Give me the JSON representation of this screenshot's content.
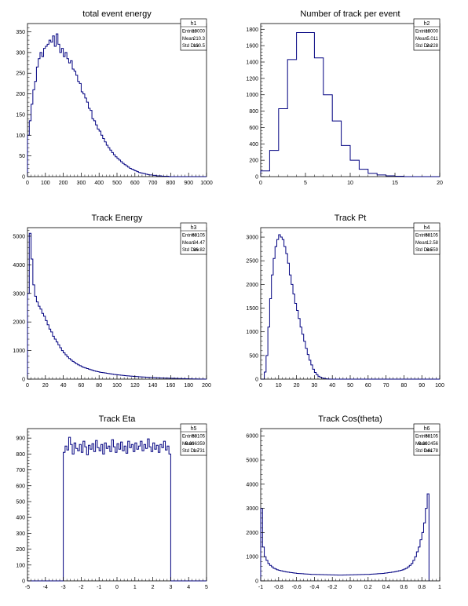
{
  "chart_data": [
    {
      "type": "bar",
      "name": "h1",
      "title": "total event  energy",
      "stats": {
        "entries": "10000",
        "mean": "210.3",
        "std_dev": "130.5"
      },
      "xlim": [
        0,
        1000
      ],
      "ylim": [
        0,
        370
      ],
      "xticks": [
        0,
        100,
        200,
        300,
        400,
        500,
        600,
        700,
        800,
        900,
        1000
      ],
      "yticks": [
        0,
        50,
        100,
        150,
        200,
        250,
        300,
        350
      ],
      "bin_width": 10,
      "bin_start": 0,
      "values": [
        100,
        135,
        175,
        210,
        230,
        265,
        285,
        300,
        290,
        310,
        315,
        320,
        330,
        325,
        340,
        315,
        345,
        320,
        300,
        310,
        290,
        300,
        285,
        275,
        280,
        260,
        255,
        245,
        230,
        225,
        205,
        200,
        190,
        180,
        165,
        160,
        140,
        135,
        125,
        115,
        110,
        100,
        92,
        84,
        76,
        70,
        64,
        58,
        53,
        48,
        44,
        40,
        36,
        32,
        29,
        26,
        23,
        20,
        18,
        16,
        14,
        12,
        10,
        9,
        8,
        7,
        6,
        5,
        4,
        4,
        3,
        3,
        2,
        2,
        2,
        1,
        1,
        1,
        1,
        0,
        0,
        0,
        0,
        0,
        0,
        0,
        0,
        0,
        0,
        0,
        0,
        0,
        0,
        0,
        0,
        0,
        0,
        0,
        0,
        0
      ]
    },
    {
      "type": "bar",
      "name": "h2",
      "title": "Number of track per event",
      "stats": {
        "entries": "10000",
        "mean": "5.011",
        "std_dev": "2.228"
      },
      "xlim": [
        0,
        20
      ],
      "ylim": [
        0,
        1870
      ],
      "xticks": [
        0,
        5,
        10,
        15,
        20
      ],
      "yticks": [
        0,
        200,
        400,
        600,
        800,
        1000,
        1200,
        1400,
        1600,
        1800
      ],
      "bin_width": 1,
      "bin_start": 0,
      "values": [
        70,
        320,
        830,
        1430,
        1760,
        1760,
        1450,
        1000,
        680,
        380,
        200,
        90,
        40,
        20,
        10,
        5,
        0,
        0,
        0,
        0
      ]
    },
    {
      "type": "bar",
      "name": "h3",
      "title": "Track Energy",
      "stats": {
        "entries": "60105",
        "mean": "34.47",
        "std_dev": "36.82"
      },
      "xlim": [
        0,
        200
      ],
      "ylim": [
        0,
        5300
      ],
      "xticks": [
        0,
        20,
        40,
        60,
        80,
        100,
        120,
        140,
        160,
        180,
        200
      ],
      "yticks": [
        0,
        1000,
        2000,
        3000,
        4000,
        5000
      ],
      "bin_width": 2,
      "bin_start": 0,
      "values": [
        3000,
        5100,
        4200,
        3300,
        2900,
        2700,
        2550,
        2450,
        2300,
        2200,
        2050,
        1900,
        1750,
        1650,
        1500,
        1400,
        1300,
        1200,
        1100,
        1000,
        920,
        850,
        780,
        720,
        670,
        620,
        580,
        540,
        500,
        470,
        440,
        410,
        390,
        370,
        350,
        330,
        310,
        290,
        275,
        260,
        245,
        235,
        225,
        215,
        205,
        195,
        185,
        175,
        165,
        158,
        150,
        143,
        136,
        130,
        124,
        118,
        112,
        107,
        102,
        97,
        92,
        88,
        84,
        80,
        76,
        72,
        68,
        64,
        60,
        57,
        54,
        51,
        48,
        45,
        42,
        40,
        38,
        36,
        34,
        32,
        30,
        28,
        26,
        24,
        22,
        20,
        18,
        16,
        14,
        12,
        10,
        9,
        8,
        7,
        6,
        5,
        4,
        3,
        2,
        1
      ]
    },
    {
      "type": "bar",
      "name": "h4",
      "title": "Track Pt",
      "stats": {
        "entries": "50105",
        "mean": "12.58",
        "std_dev": "6.559"
      },
      "xlim": [
        0,
        100
      ],
      "ylim": [
        0,
        3200
      ],
      "xticks": [
        0,
        10,
        20,
        30,
        40,
        50,
        60,
        70,
        80,
        90,
        100
      ],
      "yticks": [
        0,
        500,
        1000,
        1500,
        2000,
        2500,
        3000
      ],
      "bin_width": 1,
      "bin_start": 0,
      "values": [
        0,
        0,
        150,
        500,
        1100,
        1700,
        2200,
        2550,
        2800,
        2950,
        3050,
        3000,
        2950,
        2800,
        2650,
        2450,
        2200,
        2000,
        1800,
        1600,
        1450,
        1280,
        1100,
        950,
        800,
        650,
        520,
        400,
        300,
        210,
        140,
        95,
        60,
        40,
        25,
        15,
        8,
        4,
        2,
        1,
        0,
        0,
        0,
        0,
        0,
        0,
        0,
        0,
        0,
        0,
        0,
        0,
        0,
        0,
        0,
        0,
        0,
        0,
        0,
        0,
        0,
        0,
        0,
        0,
        0,
        0,
        0,
        0,
        0,
        0,
        0,
        0,
        0,
        0,
        0,
        0,
        0,
        0,
        0,
        0,
        0,
        0,
        0,
        0,
        0,
        0,
        0,
        0,
        0,
        0,
        0,
        0,
        0,
        0,
        0,
        0,
        0,
        0,
        0,
        0
      ]
    },
    {
      "type": "bar",
      "name": "h5",
      "title": "Track Eta",
      "stats": {
        "entries": "50105",
        "mean": "-0.006359",
        "std_dev": "1.731"
      },
      "xlim": [
        -5,
        5
      ],
      "ylim": [
        0,
        960
      ],
      "xticks": [
        -5,
        -4,
        -3,
        -2,
        -1,
        0,
        1,
        2,
        3,
        4,
        5
      ],
      "yticks": [
        0,
        100,
        200,
        300,
        400,
        500,
        600,
        700,
        800,
        900
      ],
      "bin_width": 0.1,
      "bin_start": -5,
      "values": [
        0,
        0,
        0,
        0,
        0,
        0,
        0,
        0,
        0,
        0,
        0,
        0,
        0,
        0,
        0,
        0,
        0,
        0,
        0,
        0,
        810,
        850,
        825,
        905,
        860,
        800,
        870,
        835,
        820,
        860,
        810,
        880,
        845,
        795,
        855,
        830,
        865,
        815,
        885,
        840,
        820,
        860,
        800,
        870,
        835,
        850,
        815,
        890,
        845,
        810,
        865,
        830,
        875,
        820,
        850,
        805,
        880,
        840,
        860,
        815,
        870,
        830,
        850,
        880,
        820,
        860,
        835,
        895,
        845,
        815,
        870,
        830,
        855,
        810,
        860,
        840,
        880,
        825,
        850,
        800,
        0,
        0,
        0,
        0,
        0,
        0,
        0,
        0,
        0,
        0,
        0,
        0,
        0,
        0,
        0,
        0,
        0,
        0,
        0,
        0
      ]
    },
    {
      "type": "bar",
      "name": "h6",
      "title": "Track Cos(theta)",
      "stats": {
        "entries": "50105",
        "mean": "-0.002456",
        "std_dev": "0.6178"
      },
      "xlim": [
        -1,
        1
      ],
      "ylim": [
        0,
        6300
      ],
      "xticks": [
        -1,
        -0.8,
        -0.6,
        -0.4,
        -0.2,
        0,
        0.2,
        0.4,
        0.6,
        0.8,
        1
      ],
      "xticklabels": [
        "-1",
        "-0.8",
        "-0.6",
        "-0.4",
        "-0.2",
        "0",
        "0.2",
        "0.4",
        "0.6",
        "0.8",
        "1"
      ],
      "yticks": [
        0,
        1000,
        2000,
        3000,
        4000,
        5000,
        6000
      ],
      "bin_width": 0.02,
      "bin_start": -1,
      "values": [
        3000,
        1400,
        1000,
        850,
        720,
        640,
        580,
        520,
        490,
        460,
        440,
        420,
        400,
        385,
        370,
        360,
        350,
        340,
        330,
        320,
        310,
        305,
        300,
        295,
        290,
        285,
        280,
        275,
        270,
        268,
        266,
        264,
        262,
        260,
        258,
        256,
        254,
        252,
        250,
        248,
        246,
        244,
        242,
        240,
        240,
        240,
        242,
        244,
        246,
        248,
        250,
        252,
        254,
        256,
        258,
        260,
        262,
        264,
        266,
        268,
        270,
        275,
        280,
        285,
        290,
        295,
        300,
        305,
        310,
        320,
        330,
        340,
        350,
        360,
        370,
        385,
        400,
        420,
        440,
        460,
        490,
        520,
        580,
        640,
        720,
        850,
        1000,
        1200,
        1400,
        1700,
        2000,
        2400,
        3000,
        3600
      ]
    }
  ]
}
